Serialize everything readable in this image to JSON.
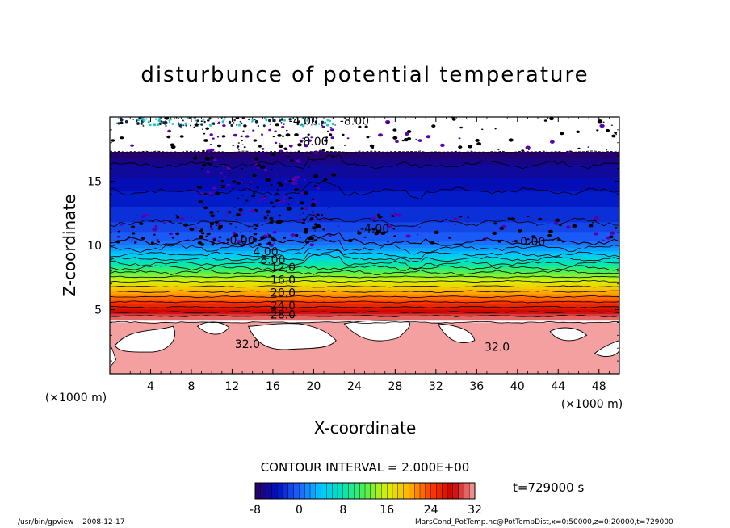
{
  "chart_data": {
    "type": "contour",
    "title": "disturbunce of potential temperature",
    "xlabel": "X-coordinate",
    "ylabel": "Z-coordinate",
    "x_unit_left": "(×1000 m)",
    "x_unit_right": "(×1000 m)",
    "xlim": [
      0,
      50
    ],
    "ylim": [
      0,
      20
    ],
    "xticks": [
      4,
      8,
      12,
      16,
      20,
      24,
      28,
      32,
      36,
      40,
      44,
      48
    ],
    "yticks": [
      5,
      10,
      15
    ],
    "contour_interval_text": "CONTOUR INTERVAL = 2.000E+00",
    "time_text": "t=729000 s",
    "colorbar": {
      "ticks": [
        -8,
        0,
        8,
        16,
        24,
        32
      ],
      "range": [
        -8,
        32
      ],
      "colors": [
        "#2a0060",
        "#0010c0",
        "#1e64ff",
        "#00c8ff",
        "#00e6b4",
        "#50f050",
        "#dcf000",
        "#ffb400",
        "#ff3c00",
        "#c80000",
        "#f5a0a0"
      ]
    },
    "contour_labels": [
      {
        "text": "-4.00",
        "x": 19.0,
        "z": 19.4
      },
      {
        "text": "-8.00",
        "x": 24.0,
        "z": 19.4
      },
      {
        "text": "-8.00",
        "x": 20.0,
        "z": 17.8
      },
      {
        "text": "-4.00",
        "x": 26.0,
        "z": 11.0
      },
      {
        "text": "0.00",
        "x": 13.0,
        "z": 10.1
      },
      {
        "text": "0.00",
        "x": 41.5,
        "z": 10.0
      },
      {
        "text": "4.00",
        "x": 15.3,
        "z": 9.2
      },
      {
        "text": "8.00",
        "x": 16.0,
        "z": 8.6
      },
      {
        "text": "12.0",
        "x": 17.0,
        "z": 8.0
      },
      {
        "text": "16.0",
        "x": 17.0,
        "z": 7.0
      },
      {
        "text": "20.0",
        "x": 17.0,
        "z": 6.0
      },
      {
        "text": "24.0",
        "x": 17.0,
        "z": 5.0
      },
      {
        "text": "28.0",
        "x": 17.0,
        "z": 4.3
      },
      {
        "text": "32.0",
        "x": 13.5,
        "z": 2.0
      },
      {
        "text": "32.0",
        "x": 38.0,
        "z": 1.8
      }
    ]
  },
  "footer": {
    "program": "/usr/bin/gpview",
    "date": "2008-12-17",
    "source": "MarsCond_PotTemp.nc@PotTempDist,x=0:50000,z=0:20000,t=729000"
  }
}
